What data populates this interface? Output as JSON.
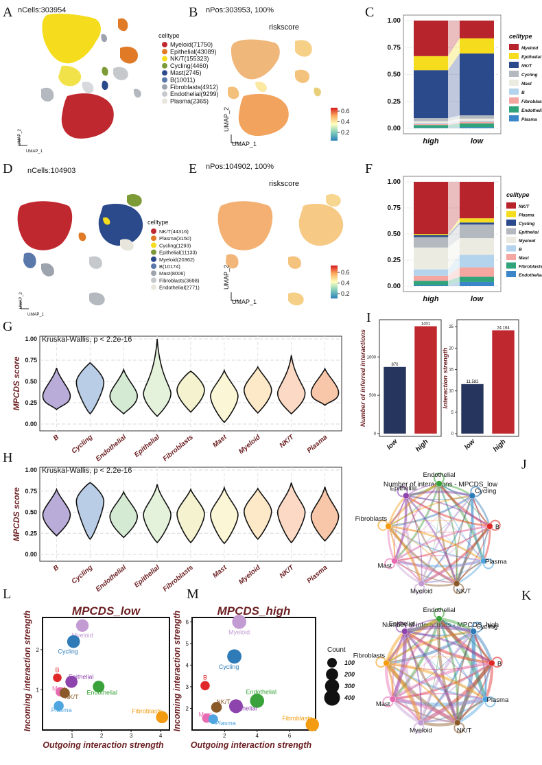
{
  "panels": {
    "A": "A",
    "B": "B",
    "C": "C",
    "D": "D",
    "E": "E",
    "F": "F",
    "G": "G",
    "H": "H",
    "I": "I",
    "J": "J",
    "K": "K",
    "L": "L",
    "M": "M"
  },
  "umap": {
    "A": {
      "title": "nCells:303954",
      "legend_title": "celltype",
      "legend": [
        {
          "label": "Myeloid(71750)",
          "color": "#c0282f"
        },
        {
          "label": "Epithelial(43089)",
          "color": "#e07a26"
        },
        {
          "label": "NK/T(155323)",
          "color": "#f5dd1e"
        },
        {
          "label": "Cycling(4460)",
          "color": "#7c9a35"
        },
        {
          "label": "Mast(2745)",
          "color": "#2b4a8c"
        },
        {
          "label": "B(10011)",
          "color": "#5a78aa"
        },
        {
          "label": "Fibroblasts(4912)",
          "color": "#9da4ad"
        },
        {
          "label": "Endothelial(9299)",
          "color": "#c6c9cc"
        },
        {
          "label": "Plasma(2365)",
          "color": "#e8e6dc"
        }
      ],
      "axis_x": "UMAP_1",
      "axis_y": "UMAP_2"
    },
    "B": {
      "title": "nPos:303953, 100%",
      "subtitle": "riskscore",
      "ticks": [
        "0.6",
        "0.4",
        "0.2"
      ],
      "axis_x": "UMAP_1",
      "axis_y": "UMAP_2"
    },
    "D": {
      "title": "nCells:104903",
      "legend_title": "celltype",
      "legend": [
        {
          "label": "NK/T(44316)",
          "color": "#c0282f"
        },
        {
          "label": "Plasma(3150)",
          "color": "#e07a26"
        },
        {
          "label": "Cycling(1293)",
          "color": "#f5dd1e"
        },
        {
          "label": "Epithelial(11133)",
          "color": "#7c9a35"
        },
        {
          "label": "Myeloid(20362)",
          "color": "#2b4a8c"
        },
        {
          "label": "B(10174)",
          "color": "#5a78aa"
        },
        {
          "label": "Mast(8006)",
          "color": "#9da4ad"
        },
        {
          "label": "Fibroblasts(3698)",
          "color": "#c6c9cc"
        },
        {
          "label": "Endothelial(2771)",
          "color": "#e8e6dc"
        }
      ],
      "axis_x": "UMAP_1",
      "axis_y": "UMAP_2"
    },
    "E": {
      "title": "nPos:104902, 100%",
      "subtitle": "riskscore",
      "ticks": [
        "0.6",
        "0.4",
        "0.2"
      ],
      "axis_x": "UMAP_1",
      "axis_y": "UMAP_2"
    }
  },
  "chart_data": [
    {
      "id": "C",
      "type": "bar",
      "stacked": true,
      "categories": [
        "high",
        "low"
      ],
      "yticks": [
        "0.00",
        "0.25",
        "0.50",
        "0.75",
        "1.00"
      ],
      "ylim": [
        0,
        1
      ],
      "legend_title": "celltype",
      "series": [
        {
          "name": "Plasma",
          "color": "#3a86c8",
          "values": [
            0.005,
            0.01
          ]
        },
        {
          "name": "Endothelial",
          "color": "#2fa37a",
          "values": [
            0.025,
            0.035
          ]
        },
        {
          "name": "Fibroblasts",
          "color": "#f4a6a0",
          "values": [
            0.01,
            0.015
          ]
        },
        {
          "name": "B",
          "color": "#b4d3ec",
          "values": [
            0.01,
            0.01
          ]
        },
        {
          "name": "Mast",
          "color": "#ecebe2",
          "values": [
            0.015,
            0.02
          ]
        },
        {
          "name": "Cycling",
          "color": "#b3b9bf",
          "values": [
            0.03,
            0.03
          ]
        },
        {
          "name": "NK/T",
          "color": "#2b4a8c",
          "values": [
            0.445,
            0.575
          ]
        },
        {
          "name": "Epithelial",
          "color": "#f5dd1e",
          "values": [
            0.13,
            0.14
          ]
        },
        {
          "name": "Myeloid",
          "color": "#b8242c",
          "values": [
            0.33,
            0.165
          ]
        }
      ]
    },
    {
      "id": "F",
      "type": "bar",
      "stacked": true,
      "categories": [
        "high",
        "low"
      ],
      "yticks": [
        "0.00",
        "0.25",
        "0.50",
        "0.75",
        "1.00"
      ],
      "ylim": [
        0,
        1
      ],
      "legend_title": "celltype",
      "series": [
        {
          "name": "Endothelial",
          "color": "#3a86c8",
          "values": [
            0.01,
            0.04
          ]
        },
        {
          "name": "Fibroblasts",
          "color": "#2fa37a",
          "values": [
            0.04,
            0.05
          ]
        },
        {
          "name": "Mast",
          "color": "#f4a6a0",
          "values": [
            0.05,
            0.09
          ]
        },
        {
          "name": "B",
          "color": "#b4d3ec",
          "values": [
            0.06,
            0.12
          ]
        },
        {
          "name": "Myeloid",
          "color": "#ecebe2",
          "values": [
            0.21,
            0.16
          ]
        },
        {
          "name": "Epithelial",
          "color": "#b3b9bf",
          "values": [
            0.1,
            0.13
          ]
        },
        {
          "name": "Cycling",
          "color": "#2b4a8c",
          "values": [
            0.02,
            0.02
          ]
        },
        {
          "name": "Plasma",
          "color": "#f5dd1e",
          "values": [
            0.01,
            0.04
          ]
        },
        {
          "name": "NK/T",
          "color": "#b8242c",
          "values": [
            0.5,
            0.35
          ]
        }
      ]
    },
    {
      "id": "G",
      "type": "violin",
      "stat": "Kruskal-Wallis, p < 2.2e-16",
      "ylabel": "MPCDS score",
      "yticks": [
        "0.00",
        "0.25",
        "0.50",
        "0.75",
        "1.00"
      ],
      "categories": [
        "B",
        "Cycling",
        "Endothelial",
        "Epithelial",
        "Fibroblasts",
        "Mast",
        "Myeloid",
        "NK/T",
        "Plasma"
      ],
      "colors": [
        "#b9acd9",
        "#b9cde6",
        "#d4ead3",
        "#e4f2dc",
        "#f4f2cf",
        "#fbf6d6",
        "#fde8c7",
        "#fcd9c4",
        "#f8c6a8"
      ],
      "medians": [
        0.33,
        0.49,
        0.33,
        0.36,
        0.4,
        0.33,
        0.4,
        0.36,
        0.37
      ],
      "mins": [
        0.17,
        0.12,
        0.12,
        0.09,
        0.14,
        0.02,
        0.13,
        0.12,
        0.22
      ],
      "maxs": [
        0.66,
        0.72,
        0.64,
        1.0,
        0.62,
        0.63,
        0.67,
        0.81,
        0.65
      ]
    },
    {
      "id": "H",
      "type": "violin",
      "stat": "Kruskal-Wallis, p < 2.2e-16",
      "ylabel": "MPCDS score",
      "yticks": [
        "0.00",
        "0.25",
        "0.50",
        "0.75",
        "1.00"
      ],
      "categories": [
        "B",
        "Cycling",
        "Endothelial",
        "Epithelial",
        "Fibroblasts",
        "Mast",
        "Myeloid",
        "NK/T",
        "Plasma"
      ],
      "colors": [
        "#b9acd9",
        "#b9cde6",
        "#d4ead3",
        "#e4f2dc",
        "#f4f2cf",
        "#fbf6d6",
        "#fde8c7",
        "#fcd9c4",
        "#f8c6a8"
      ],
      "medians": [
        0.47,
        0.63,
        0.45,
        0.47,
        0.48,
        0.47,
        0.51,
        0.5,
        0.45
      ],
      "mins": [
        0.22,
        0.18,
        0.2,
        0.14,
        0.14,
        0.13,
        0.18,
        0.14,
        0.16
      ],
      "maxs": [
        0.77,
        0.85,
        0.74,
        0.83,
        0.77,
        0.79,
        0.78,
        0.85,
        0.8
      ]
    },
    {
      "id": "I1",
      "type": "bar",
      "categories": [
        "low",
        "high"
      ],
      "values": [
        870,
        1401
      ],
      "labels": [
        "870",
        "1401"
      ],
      "colors": [
        "#26355e",
        "#c0282f"
      ],
      "ylabel": "Number of inferred interactions",
      "yticks": [
        "0",
        "500",
        "1000"
      ],
      "ylim": [
        0,
        1450
      ]
    },
    {
      "id": "I2",
      "type": "bar",
      "categories": [
        "low",
        "high"
      ],
      "values": [
        11.582,
        24.164
      ],
      "labels": [
        "11.582",
        "24.164"
      ],
      "colors": [
        "#26355e",
        "#c0282f"
      ],
      "ylabel": "Interaction strength",
      "yticks": [
        "0",
        "5",
        "10",
        "15",
        "20",
        "25"
      ],
      "ylim": [
        0,
        26
      ]
    },
    {
      "id": "L",
      "type": "scatter",
      "title": "MPCDS_low",
      "xlabel": "Outgoing interaction strength",
      "ylabel": "Incoming interaction strength",
      "xlim": [
        0,
        4.3
      ],
      "ylim": [
        0,
        2.8
      ],
      "xticks": [
        "1",
        "2",
        "3",
        "4"
      ],
      "yticks": [
        "1",
        "2"
      ],
      "points": [
        {
          "name": "Myeloid",
          "x": 1.35,
          "y": 2.6,
          "size": 220,
          "color": "#c39bd3"
        },
        {
          "name": "Cycling",
          "x": 1.05,
          "y": 2.2,
          "size": 230,
          "color": "#2e7bb8"
        },
        {
          "name": "B",
          "x": 0.5,
          "y": 1.3,
          "size": 70,
          "color": "#e02828"
        },
        {
          "name": "Epithelial",
          "x": 0.98,
          "y": 1.2,
          "size": 200,
          "color": "#8e44ad"
        },
        {
          "name": "Endothelial",
          "x": 1.9,
          "y": 1.08,
          "size": 180,
          "color": "#3aa23a"
        },
        {
          "name": "Mast",
          "x": 0.6,
          "y": 0.95,
          "size": 90,
          "color": "#e86ab0"
        },
        {
          "name": "NK/T",
          "x": 0.75,
          "y": 0.92,
          "size": 120,
          "color": "#8b5a2b"
        },
        {
          "name": "Plasma",
          "x": 0.55,
          "y": 0.6,
          "size": 110,
          "color": "#4fa5e0"
        },
        {
          "name": "Fibroblasts",
          "x": 4.05,
          "y": 0.32,
          "size": 200,
          "color": "#f39c12"
        }
      ]
    },
    {
      "id": "M",
      "type": "scatter",
      "title": "MPCDS_high",
      "xlabel": "Outgoing interaction strength",
      "ylabel": "Incoming interaction strength",
      "xlim": [
        0,
        7.6
      ],
      "ylim": [
        1,
        6.2
      ],
      "xticks": [
        "2",
        "4",
        "6"
      ],
      "yticks": [
        "2",
        "3",
        "4",
        "5",
        "6"
      ],
      "points": [
        {
          "name": "Myeloid",
          "x": 2.9,
          "y": 6.0,
          "size": 300,
          "color": "#c39bd3"
        },
        {
          "name": "Cycling",
          "x": 2.6,
          "y": 4.4,
          "size": 310,
          "color": "#2e7bb8"
        },
        {
          "name": "B",
          "x": 0.8,
          "y": 3.05,
          "size": 90,
          "color": "#e02828"
        },
        {
          "name": "Endothelial",
          "x": 4.0,
          "y": 2.35,
          "size": 300,
          "color": "#3aa23a"
        },
        {
          "name": "NK/T",
          "x": 1.5,
          "y": 2.05,
          "size": 140,
          "color": "#8b5a2b"
        },
        {
          "name": "Epithelial",
          "x": 2.7,
          "y": 2.1,
          "size": 280,
          "color": "#8e44ad"
        },
        {
          "name": "Mast",
          "x": 0.9,
          "y": 1.55,
          "size": 90,
          "color": "#e86ab0"
        },
        {
          "name": "Plasma",
          "x": 1.3,
          "y": 1.5,
          "size": 100,
          "color": "#4fa5e0"
        },
        {
          "name": "Fibroblasts",
          "x": 7.4,
          "y": 1.25,
          "size": 260,
          "color": "#f39c12"
        }
      ]
    }
  ],
  "size_legend": {
    "title": "Count",
    "labels": [
      "100",
      "200",
      "300",
      "400"
    ]
  },
  "networks": {
    "J": {
      "title": "Number of interactions - MPCDS_low",
      "nodes": [
        {
          "name": "Endothelial",
          "color": "#3aa23a"
        },
        {
          "name": "Cycling",
          "color": "#2e7bb8"
        },
        {
          "name": "B",
          "color": "#e02828"
        },
        {
          "name": "Plasma",
          "color": "#4fa5e0"
        },
        {
          "name": "NK/T",
          "color": "#8b5a2b"
        },
        {
          "name": "Myeloid",
          "color": "#c39bd3"
        },
        {
          "name": "Mast",
          "color": "#e86ab0"
        },
        {
          "name": "Fibroblasts",
          "color": "#f39c12"
        },
        {
          "name": "Epithelial",
          "color": "#8e44ad"
        }
      ]
    },
    "K": {
      "title": "Number of interactions - MPCDS_high",
      "nodes": [
        {
          "name": "Endothelial",
          "color": "#3aa23a"
        },
        {
          "name": "Cycling",
          "color": "#2e7bb8"
        },
        {
          "name": "B",
          "color": "#e02828"
        },
        {
          "name": "Plasma",
          "color": "#4fa5e0"
        },
        {
          "name": "NK/T",
          "color": "#8b5a2b"
        },
        {
          "name": "Myeloid",
          "color": "#c39bd3"
        },
        {
          "name": "Mast",
          "color": "#e86ab0"
        },
        {
          "name": "Fibroblasts",
          "color": "#f39c12"
        },
        {
          "name": "Epithelial",
          "color": "#8e44ad"
        }
      ]
    }
  }
}
